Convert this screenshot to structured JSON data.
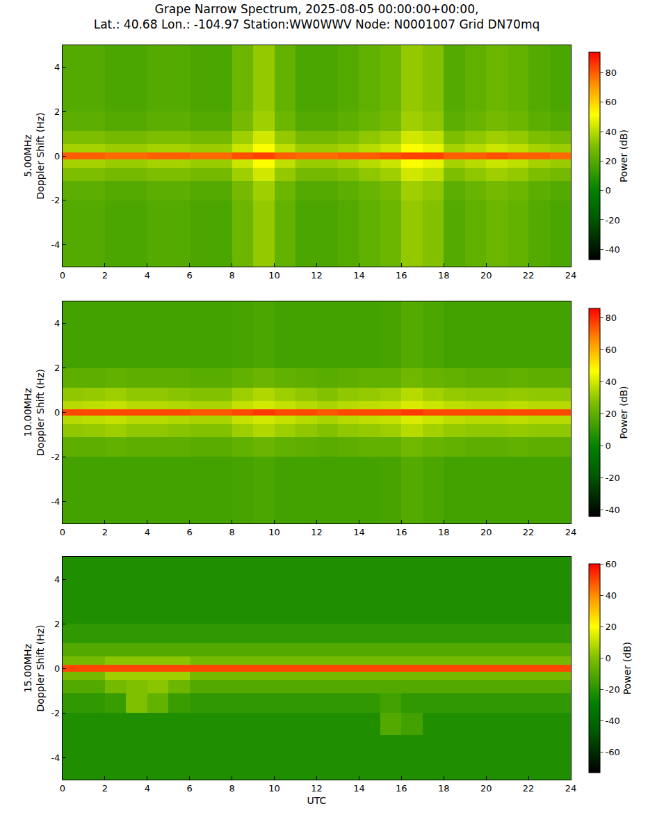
{
  "chart_data": [
    {
      "type": "heatmap",
      "title": "Grape Narrow Spectrum, 2025-08-05 00:00:00+00:00,\nLat.: 40.68 Lon.: -104.97 Station:WW0WWV Node: N0001007 Grid DN70mq",
      "ylabel": "5.00MHz\nDoppler Shift (Hz)",
      "colorbar_label": "Power (dB)",
      "grid": true,
      "xlim": [
        0,
        24
      ],
      "xticks": [
        0,
        2,
        4,
        6,
        8,
        10,
        12,
        14,
        16,
        18,
        20,
        22,
        24
      ],
      "ylim": [
        -5,
        5
      ],
      "yticks": [
        -4,
        -2,
        0,
        2,
        4
      ],
      "zlim": [
        -47,
        94
      ],
      "zticks": [
        -40,
        -20,
        0,
        20,
        40,
        60,
        80
      ],
      "x": [
        0.5,
        1.5,
        2.5,
        3.5,
        4.5,
        5.5,
        6.5,
        7.5,
        8.5,
        9.5,
        10.5,
        11.5,
        12.5,
        13.5,
        14.5,
        15.5,
        16.5,
        17.5,
        18.5,
        19.5,
        20.5,
        21.5,
        22.5,
        23.5
      ],
      "y": [
        -4.5,
        -3.5,
        -2.5,
        -1.5,
        -0.75,
        -0.3,
        0,
        0.3,
        0.75,
        1.5,
        2.5,
        3.5,
        4.5
      ],
      "z": [
        [
          20,
          20,
          18,
          18,
          20,
          20,
          18,
          18,
          26,
          34,
          24,
          18,
          18,
          20,
          23,
          26,
          34,
          31,
          20,
          23,
          26,
          24,
          20,
          18
        ],
        [
          20,
          20,
          18,
          18,
          20,
          20,
          18,
          18,
          26,
          34,
          24,
          18,
          18,
          20,
          23,
          26,
          34,
          31,
          20,
          23,
          26,
          24,
          20,
          18
        ],
        [
          20,
          20,
          18,
          18,
          20,
          20,
          18,
          18,
          26,
          34,
          24,
          18,
          18,
          20,
          23,
          26,
          34,
          31,
          20,
          23,
          26,
          24,
          20,
          18
        ],
        [
          22,
          22,
          20,
          20,
          22,
          22,
          20,
          20,
          28,
          36,
          26,
          20,
          20,
          22,
          25,
          28,
          36,
          33,
          22,
          25,
          28,
          26,
          22,
          20
        ],
        [
          30,
          30,
          28,
          28,
          30,
          30,
          28,
          28,
          36,
          44,
          34,
          28,
          28,
          30,
          33,
          36,
          44,
          41,
          30,
          33,
          36,
          34,
          30,
          28
        ],
        [
          37,
          37,
          35,
          35,
          37,
          37,
          35,
          35,
          43,
          51,
          41,
          35,
          35,
          37,
          40,
          43,
          51,
          48,
          37,
          40,
          43,
          41,
          37,
          35
        ],
        [
          80,
          80,
          78,
          78,
          80,
          80,
          78,
          78,
          82,
          84,
          80,
          78,
          78,
          80,
          80,
          82,
          84,
          84,
          80,
          80,
          82,
          80,
          80,
          78
        ],
        [
          37,
          37,
          35,
          35,
          37,
          37,
          35,
          35,
          43,
          51,
          41,
          35,
          35,
          37,
          40,
          43,
          51,
          48,
          37,
          40,
          43,
          41,
          37,
          35
        ],
        [
          30,
          30,
          28,
          28,
          30,
          30,
          28,
          28,
          36,
          44,
          34,
          28,
          28,
          30,
          33,
          36,
          44,
          41,
          30,
          33,
          36,
          34,
          30,
          28
        ],
        [
          22,
          22,
          20,
          20,
          22,
          22,
          20,
          20,
          28,
          36,
          26,
          20,
          20,
          22,
          25,
          28,
          36,
          33,
          22,
          25,
          28,
          26,
          22,
          20
        ],
        [
          20,
          20,
          18,
          18,
          20,
          20,
          18,
          18,
          26,
          34,
          24,
          18,
          18,
          20,
          23,
          26,
          34,
          31,
          20,
          23,
          26,
          24,
          20,
          18
        ],
        [
          20,
          20,
          18,
          18,
          20,
          20,
          18,
          18,
          26,
          34,
          24,
          18,
          18,
          20,
          23,
          26,
          34,
          31,
          20,
          23,
          26,
          24,
          20,
          18
        ],
        [
          20,
          20,
          18,
          18,
          20,
          20,
          18,
          18,
          26,
          34,
          24,
          18,
          18,
          20,
          23,
          26,
          34,
          31,
          20,
          23,
          26,
          24,
          20,
          18
        ]
      ]
    },
    {
      "type": "heatmap",
      "ylabel": "10.00MHz\nDoppler Shift (Hz)",
      "colorbar_label": "Power (dB)",
      "grid": true,
      "xlim": [
        0,
        24
      ],
      "xticks": [
        0,
        2,
        4,
        6,
        8,
        10,
        12,
        14,
        16,
        18,
        20,
        22,
        24
      ],
      "ylim": [
        -5,
        5
      ],
      "yticks": [
        -4,
        -2,
        0,
        2,
        4
      ],
      "zlim": [
        -44,
        86
      ],
      "zticks": [
        -40,
        -20,
        0,
        20,
        40,
        60,
        80
      ],
      "x": [
        0.5,
        1.5,
        2.5,
        3.5,
        4.5,
        5.5,
        6.5,
        7.5,
        8.5,
        9.5,
        10.5,
        11.5,
        12.5,
        13.5,
        14.5,
        15.5,
        16.5,
        17.5,
        18.5,
        19.5,
        20.5,
        21.5,
        22.5,
        23.5
      ],
      "y": [
        -4.5,
        -3.5,
        -2.5,
        -1.5,
        -0.75,
        -0.3,
        0,
        0.3,
        0.75,
        1.5,
        2.5,
        3.5,
        4.5
      ],
      "z": [
        [
          14,
          14,
          14,
          14,
          14,
          14,
          14,
          14,
          15,
          16,
          14,
          14,
          14,
          14,
          14,
          15,
          18,
          16,
          14,
          14,
          14,
          14,
          14,
          14
        ],
        [
          14,
          14,
          14,
          14,
          14,
          14,
          14,
          14,
          15,
          16,
          14,
          14,
          14,
          14,
          14,
          15,
          18,
          16,
          14,
          14,
          14,
          14,
          14,
          14
        ],
        [
          14,
          14,
          14,
          14,
          14,
          14,
          14,
          14,
          15,
          16,
          14,
          14,
          14,
          14,
          14,
          15,
          18,
          16,
          14,
          14,
          14,
          14,
          14,
          14
        ],
        [
          20,
          20,
          21,
          20,
          20,
          20,
          19,
          19,
          21,
          23,
          21,
          20,
          19,
          20,
          21,
          21,
          24,
          22,
          21,
          20,
          20,
          21,
          20,
          20
        ],
        [
          30,
          31,
          32,
          30,
          30,
          29,
          28,
          28,
          32,
          35,
          32,
          30,
          28,
          30,
          31,
          32,
          36,
          33,
          31,
          30,
          30,
          31,
          30,
          30
        ],
        [
          36,
          37,
          38,
          36,
          36,
          35,
          34,
          34,
          38,
          40,
          38,
          36,
          34,
          36,
          37,
          38,
          41,
          39,
          37,
          36,
          36,
          37,
          36,
          36
        ],
        [
          76,
          76,
          76,
          76,
          76,
          76,
          74,
          74,
          76,
          78,
          76,
          76,
          74,
          76,
          76,
          76,
          78,
          76,
          76,
          76,
          76,
          76,
          76,
          76
        ],
        [
          36,
          37,
          38,
          36,
          36,
          35,
          34,
          34,
          38,
          40,
          38,
          36,
          34,
          36,
          37,
          38,
          41,
          39,
          37,
          36,
          36,
          37,
          36,
          36
        ],
        [
          30,
          31,
          32,
          30,
          30,
          29,
          28,
          28,
          32,
          35,
          32,
          30,
          28,
          30,
          31,
          32,
          36,
          33,
          31,
          30,
          30,
          31,
          30,
          30
        ],
        [
          20,
          20,
          21,
          20,
          20,
          20,
          19,
          19,
          21,
          23,
          21,
          20,
          19,
          20,
          21,
          21,
          24,
          22,
          21,
          20,
          20,
          21,
          20,
          20
        ],
        [
          14,
          14,
          14,
          14,
          14,
          14,
          14,
          14,
          15,
          16,
          14,
          14,
          14,
          14,
          14,
          15,
          18,
          16,
          14,
          14,
          14,
          14,
          14,
          14
        ],
        [
          14,
          14,
          14,
          14,
          14,
          14,
          14,
          14,
          15,
          16,
          14,
          14,
          14,
          14,
          14,
          15,
          18,
          16,
          14,
          14,
          14,
          14,
          14,
          14
        ],
        [
          14,
          14,
          14,
          14,
          14,
          14,
          14,
          14,
          15,
          16,
          14,
          14,
          14,
          14,
          14,
          15,
          18,
          16,
          14,
          14,
          14,
          14,
          14,
          14
        ]
      ]
    },
    {
      "type": "heatmap",
      "ylabel": "15.00MHz\nDoppler Shift (Hz)",
      "xlabel": "UTC",
      "colorbar_label": "Power (dB)",
      "grid": true,
      "xlim": [
        0,
        24
      ],
      "xticks": [
        0,
        2,
        4,
        6,
        8,
        10,
        12,
        14,
        16,
        18,
        20,
        22,
        24
      ],
      "ylim": [
        -5,
        5
      ],
      "yticks": [
        -4,
        -2,
        0,
        2,
        4
      ],
      "zlim": [
        -73,
        60
      ],
      "zticks": [
        -60,
        -40,
        -20,
        0,
        20,
        40,
        60
      ],
      "x": [
        0.5,
        1.5,
        2.5,
        3.5,
        4.5,
        5.5,
        6.5,
        7.5,
        8.5,
        9.5,
        10.5,
        11.5,
        12.5,
        13.5,
        14.5,
        15.5,
        16.5,
        17.5,
        18.5,
        19.5,
        20.5,
        21.5,
        22.5,
        23.5
      ],
      "y": [
        -4.5,
        -3.5,
        -2.5,
        -1.5,
        -0.75,
        -0.3,
        0,
        0.3,
        0.75,
        1.5,
        2.5,
        3.5,
        4.5
      ],
      "z": [
        [
          -22,
          -22,
          -22,
          -22,
          -22,
          -22,
          -22,
          -22,
          -22,
          -22,
          -22,
          -22,
          -22,
          -22,
          -22,
          -22,
          -22,
          -22,
          -22,
          -22,
          -22,
          -22,
          -22,
          -22
        ],
        [
          -22,
          -22,
          -22,
          -22,
          -22,
          -22,
          -22,
          -22,
          -22,
          -22,
          -22,
          -22,
          -22,
          -22,
          -22,
          -22,
          -22,
          -22,
          -22,
          -22,
          -22,
          -22,
          -22,
          -22
        ],
        [
          -22,
          -22,
          -22,
          -22,
          -22,
          -22,
          -22,
          -22,
          -22,
          -22,
          -22,
          -22,
          -22,
          -22,
          -22,
          -10,
          -14,
          -22,
          -22,
          -22,
          -22,
          -22,
          -22,
          -22
        ],
        [
          -18,
          -18,
          -16,
          0,
          -6,
          -16,
          -18,
          -18,
          -18,
          -18,
          -18,
          -18,
          -18,
          -18,
          -18,
          -14,
          -18,
          -18,
          -18,
          -18,
          -18,
          -18,
          -18,
          -18
        ],
        [
          -10,
          -10,
          -2,
          0,
          2,
          -4,
          -10,
          -10,
          -10,
          -10,
          -10,
          -10,
          -10,
          -10,
          -10,
          -10,
          -10,
          -10,
          -10,
          -10,
          -10,
          -10,
          -10,
          -10
        ],
        [
          -2,
          -2,
          5,
          5,
          5,
          5,
          -2,
          -2,
          -2,
          -2,
          -2,
          -2,
          -2,
          -2,
          -2,
          -2,
          -2,
          -2,
          -2,
          -2,
          -2,
          -2,
          -2,
          -2
        ],
        [
          50,
          50,
          50,
          50,
          50,
          50,
          50,
          50,
          50,
          50,
          50,
          50,
          50,
          50,
          50,
          50,
          50,
          50,
          50,
          50,
          50,
          50,
          50,
          50
        ],
        [
          -2,
          -2,
          2,
          2,
          2,
          2,
          -2,
          -2,
          -2,
          -2,
          -2,
          -2,
          -2,
          -2,
          -2,
          -2,
          -2,
          -2,
          -2,
          -2,
          -2,
          -2,
          -2,
          -2
        ],
        [
          -10,
          -10,
          -10,
          -10,
          -10,
          -10,
          -10,
          -10,
          -10,
          -10,
          -10,
          -10,
          -10,
          -10,
          -10,
          -10,
          -10,
          -10,
          -10,
          -10,
          -10,
          -10,
          -10,
          -10
        ],
        [
          -18,
          -18,
          -18,
          -18,
          -18,
          -18,
          -18,
          -18,
          -18,
          -18,
          -18,
          -18,
          -18,
          -18,
          -18,
          -18,
          -18,
          -18,
          -18,
          -18,
          -18,
          -18,
          -18,
          -18
        ],
        [
          -22,
          -22,
          -22,
          -22,
          -22,
          -22,
          -22,
          -22,
          -22,
          -22,
          -22,
          -22,
          -22,
          -22,
          -22,
          -22,
          -22,
          -22,
          -22,
          -22,
          -22,
          -22,
          -22,
          -22
        ],
        [
          -22,
          -22,
          -22,
          -22,
          -22,
          -22,
          -22,
          -22,
          -22,
          -22,
          -22,
          -22,
          -22,
          -22,
          -22,
          -22,
          -22,
          -22,
          -22,
          -22,
          -22,
          -22,
          -22,
          -22
        ],
        [
          -22,
          -22,
          -22,
          -22,
          -22,
          -22,
          -22,
          -22,
          -22,
          -22,
          -22,
          -22,
          -22,
          -22,
          -22,
          -22,
          -22,
          -22,
          -22,
          -22,
          -22,
          -22,
          -22,
          -22
        ]
      ]
    }
  ]
}
